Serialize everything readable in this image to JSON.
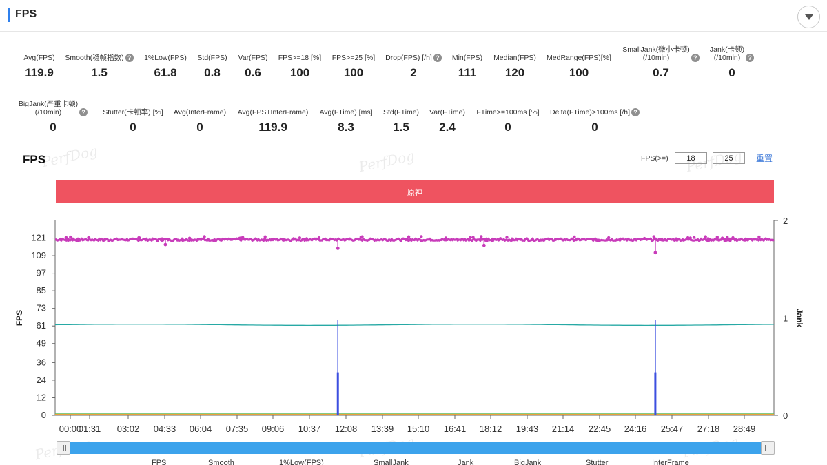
{
  "header": {
    "title": "FPS"
  },
  "metrics_row1": [
    {
      "label": "Avg(FPS)",
      "value": "119.9",
      "help": false
    },
    {
      "label": "Smooth(稳帧指数)",
      "value": "1.5",
      "help": true
    },
    {
      "label": "1%Low(FPS)",
      "value": "61.8",
      "help": false
    },
    {
      "label": "Std(FPS)",
      "value": "0.8",
      "help": false
    },
    {
      "label": "Var(FPS)",
      "value": "0.6",
      "help": false
    },
    {
      "label": "FPS>=18 [%]",
      "value": "100",
      "help": false
    },
    {
      "label": "FPS>=25 [%]",
      "value": "100",
      "help": false
    },
    {
      "label": "Drop(FPS) [/h]",
      "value": "2",
      "help": true
    },
    {
      "label": "Min(FPS)",
      "value": "111",
      "help": false
    },
    {
      "label": "Median(FPS)",
      "value": "120",
      "help": false
    },
    {
      "label": "MedRange(FPS)[%]",
      "value": "100",
      "help": false
    },
    {
      "label": "SmallJank(微小卡顿)",
      "label2": "(/10min)",
      "value": "0.7",
      "help": true
    },
    {
      "label": "Jank(卡顿)",
      "label2": "(/10min)",
      "value": "0",
      "help": true
    }
  ],
  "metrics_row2": [
    {
      "label": "BigJank(严重卡顿)",
      "label2": "(/10min)",
      "value": "0",
      "help": true
    },
    {
      "label": "Stutter(卡顿率) [%]",
      "value": "0",
      "help": false
    },
    {
      "label": "Avg(InterFrame)",
      "value": "0",
      "help": false
    },
    {
      "label": "Avg(FPS+InterFrame)",
      "value": "119.9",
      "help": false
    },
    {
      "label": "Avg(FTime) [ms]",
      "value": "8.3",
      "help": false
    },
    {
      "label": "Std(FTime)",
      "value": "1.5",
      "help": false
    },
    {
      "label": "Var(FTime)",
      "value": "2.4",
      "help": false
    },
    {
      "label": "FTime>=100ms [%]",
      "value": "0",
      "help": false
    },
    {
      "label": "Delta(FTime)>100ms [/h]",
      "value": "0",
      "help": true
    }
  ],
  "chart_section": {
    "title": "FPS",
    "watermark": "PerfDog",
    "filter_label": "FPS(>=)",
    "filter_value_1": "18",
    "filter_value_2": "25",
    "reset_label": "重置",
    "app_band_label": "原神"
  },
  "chart_data": {
    "type": "line",
    "ylabel": "FPS",
    "y2label": "Jank",
    "y_ticks": [
      0,
      12,
      24,
      36,
      49,
      61,
      73,
      85,
      97,
      109,
      121
    ],
    "y2_ticks": [
      0,
      1,
      2
    ],
    "x_ticks": [
      "00:00",
      "01:31",
      "03:02",
      "04:33",
      "06:04",
      "07:35",
      "09:06",
      "10:37",
      "12:08",
      "13:39",
      "15:10",
      "16:41",
      "18:12",
      "19:43",
      "21:14",
      "22:45",
      "24:16",
      "25:47",
      "27:18",
      "28:49"
    ],
    "ylim": [
      0,
      133
    ],
    "y2lim": [
      0,
      2
    ],
    "duration_min": 30.0,
    "series": [
      {
        "name": "FPS",
        "color": "#c83cba",
        "baseline": 119.9,
        "dips": [
          [
            4.6,
            116.5
          ],
          [
            11.8,
            114.0
          ],
          [
            17.9,
            116.0
          ],
          [
            25.05,
            111.0
          ]
        ]
      },
      {
        "name": "1%Low(FPS)",
        "color": "#27a9a5",
        "baseline": 61.8
      },
      {
        "name": "Jank",
        "color": "#3c4fe0",
        "spikes": [
          [
            11.8,
            0.98
          ],
          [
            25.05,
            0.98
          ]
        ]
      },
      {
        "name": "BigJank",
        "color": "#5cb85c",
        "baseline": 0.1
      },
      {
        "name": "Stutter",
        "color": "#e8a23a",
        "baseline": 0.05
      }
    ]
  },
  "legend": [
    "FPS",
    "Smooth",
    "1%Low(FPS)",
    "SmallJank",
    "Jank",
    "BigJank",
    "Stutter",
    "InterFrame"
  ],
  "colors": {
    "accent": "#2f80ed",
    "band": "#ef5360",
    "slider": "#3ca3ec",
    "link": "#2f6fd6"
  },
  "icons": {
    "collapse": "chevron-down-icon",
    "help": "question-circle-icon"
  }
}
